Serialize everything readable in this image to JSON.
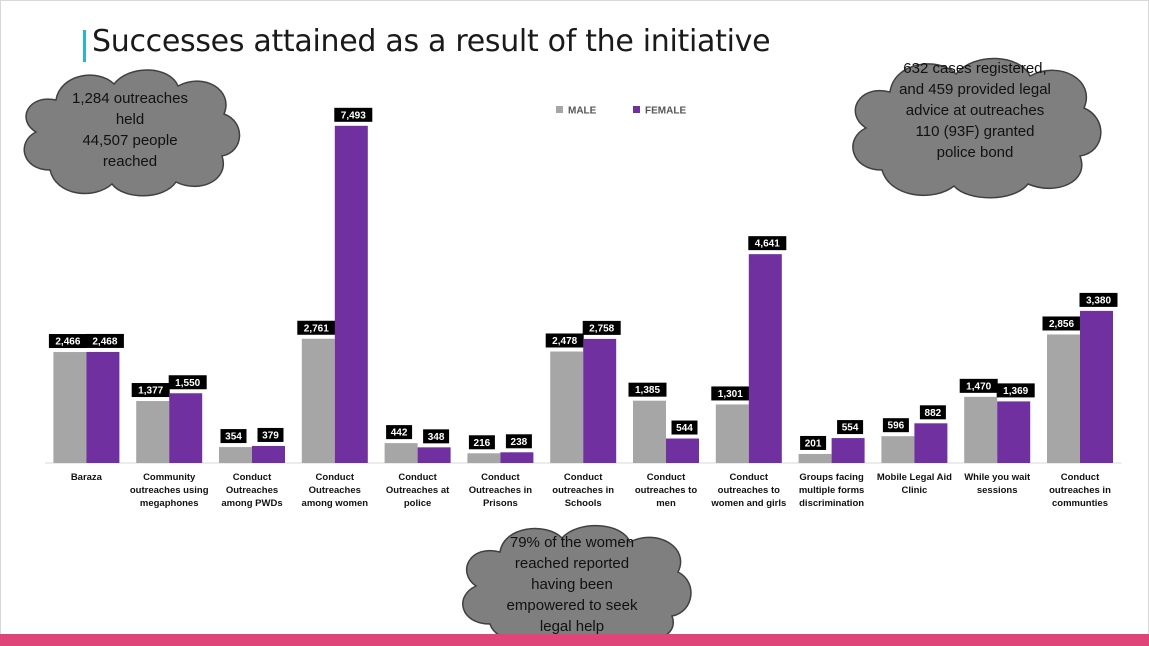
{
  "slide": {
    "title": "Successes attained as a result of the initiative",
    "accent_color": "#2bb5c8",
    "bottom_strip_color": "#e0457a"
  },
  "clouds": {
    "outreach": {
      "lines": [
        "1,284 outreaches",
        "held",
        "44,507 people",
        "reached"
      ]
    },
    "cases": {
      "lines": [
        "632 cases registered,",
        "and 459 provided legal",
        "advice at outreaches",
        "110 (93F) granted",
        "police bond"
      ]
    },
    "women": {
      "lines": [
        "79% of the women",
        "reached reported",
        "having been",
        "empowered to seek",
        "legal help"
      ]
    },
    "fill_color": "#7f7f7f"
  },
  "chart_data": {
    "type": "bar",
    "categories": [
      [
        "Baraza"
      ],
      [
        "Community",
        "outreaches using",
        "megaphones"
      ],
      [
        "Conduct",
        "Outreaches",
        "among PWDs"
      ],
      [
        "Conduct",
        "Outreaches",
        "among women"
      ],
      [
        "Conduct",
        "Outreaches at",
        "police"
      ],
      [
        "Conduct",
        "Outreaches in",
        "Prisons"
      ],
      [
        "Conduct",
        "outreaches in",
        "Schools"
      ],
      [
        "Conduct",
        "outreaches to",
        "men"
      ],
      [
        "Conduct",
        "outreaches to",
        "women and girls"
      ],
      [
        "Groups facing",
        "multiple forms",
        "discrimination"
      ],
      [
        "Mobile Legal Aid",
        "Clinic"
      ],
      [
        "While you wait",
        "sessions"
      ],
      [
        "Conduct",
        "outreaches in",
        "communties"
      ]
    ],
    "series": [
      {
        "name": "MALE",
        "color": "#a6a6a6",
        "values": [
          2466,
          1377,
          354,
          2761,
          442,
          216,
          2478,
          1385,
          1301,
          201,
          596,
          1470,
          2856
        ],
        "labels": [
          "2,466",
          "1,377",
          "354",
          "2,761",
          "442",
          "216",
          "2,478",
          "1,385",
          "1,301",
          "201",
          "596",
          "1,470",
          "2,856"
        ]
      },
      {
        "name": "FEMALE",
        "color": "#7030a0",
        "values": [
          2468,
          1550,
          379,
          7493,
          348,
          238,
          2758,
          544,
          4641,
          554,
          882,
          1369,
          3380
        ],
        "labels": [
          "2,468",
          "1,550",
          "379",
          "7,493",
          "348",
          "238",
          "2,758",
          "544",
          "4,641",
          "554",
          "882",
          "1,369",
          "3,380"
        ]
      }
    ],
    "legend_position": "top",
    "ylim": [
      0,
      7800
    ],
    "grid": false,
    "data_labels": true
  }
}
